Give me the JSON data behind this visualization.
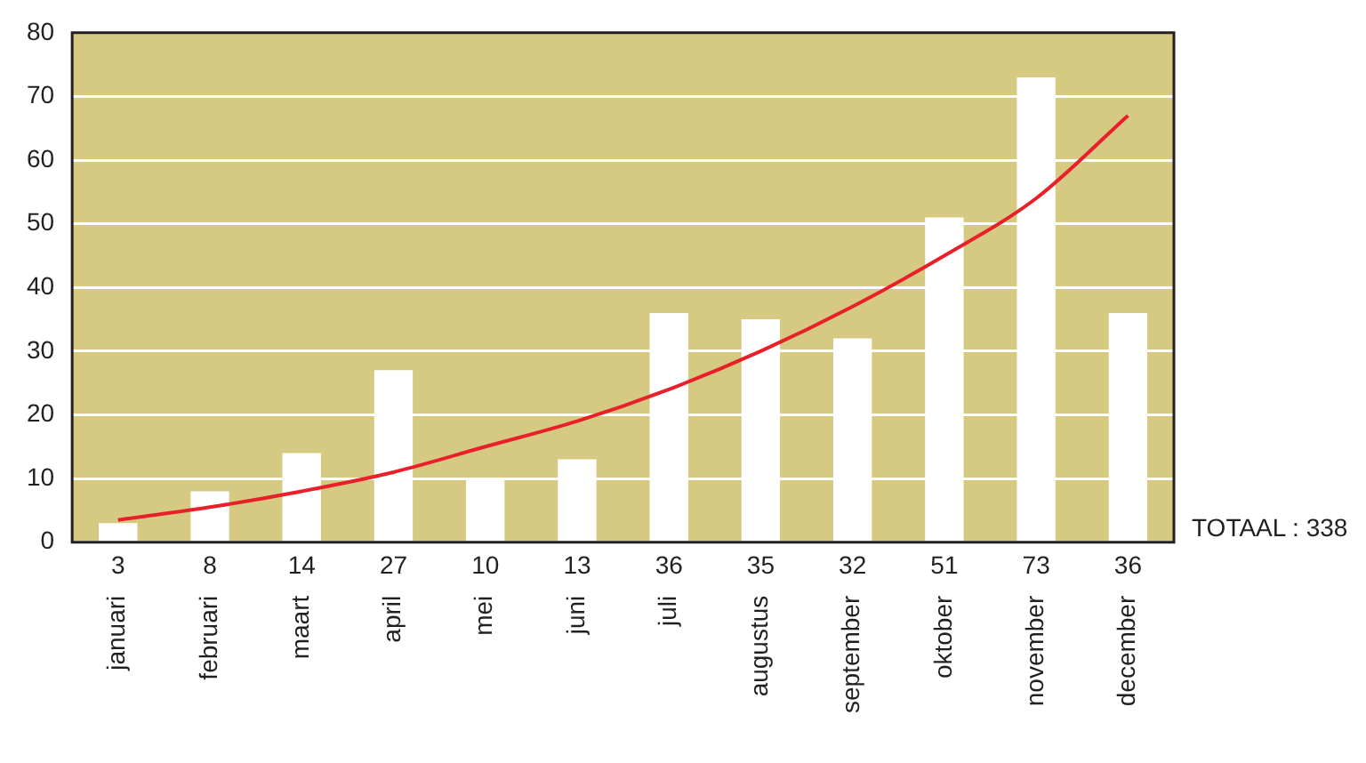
{
  "chart_data": {
    "type": "bar",
    "categories": [
      "januari",
      "februari",
      "maart",
      "april",
      "mei",
      "juni",
      "juli",
      "augustus",
      "september",
      "oktober",
      "november",
      "december"
    ],
    "series": [
      {
        "color": "#ffffff",
        "values": [
          3,
          8,
          14,
          27,
          10,
          13,
          36,
          35,
          32,
          51,
          73,
          36
        ],
        "value_labels": [
          "3",
          "8",
          "14",
          "27",
          "10",
          "13",
          "36",
          "35",
          "32",
          "51",
          "73",
          "36"
        ]
      },
      {
        "type": "line",
        "color": "#e8202a",
        "values": [
          3.5,
          5.5,
          8,
          11,
          15,
          19,
          24,
          30,
          37,
          45,
          54,
          67
        ]
      }
    ],
    "ylim": [
      0,
      80
    ],
    "yticks": [
      0,
      10,
      20,
      30,
      40,
      50,
      60,
      70,
      80
    ],
    "grid": "y",
    "legend": false,
    "marker": "none",
    "annotations": [
      "TOTAAL : 338"
    ]
  }
}
